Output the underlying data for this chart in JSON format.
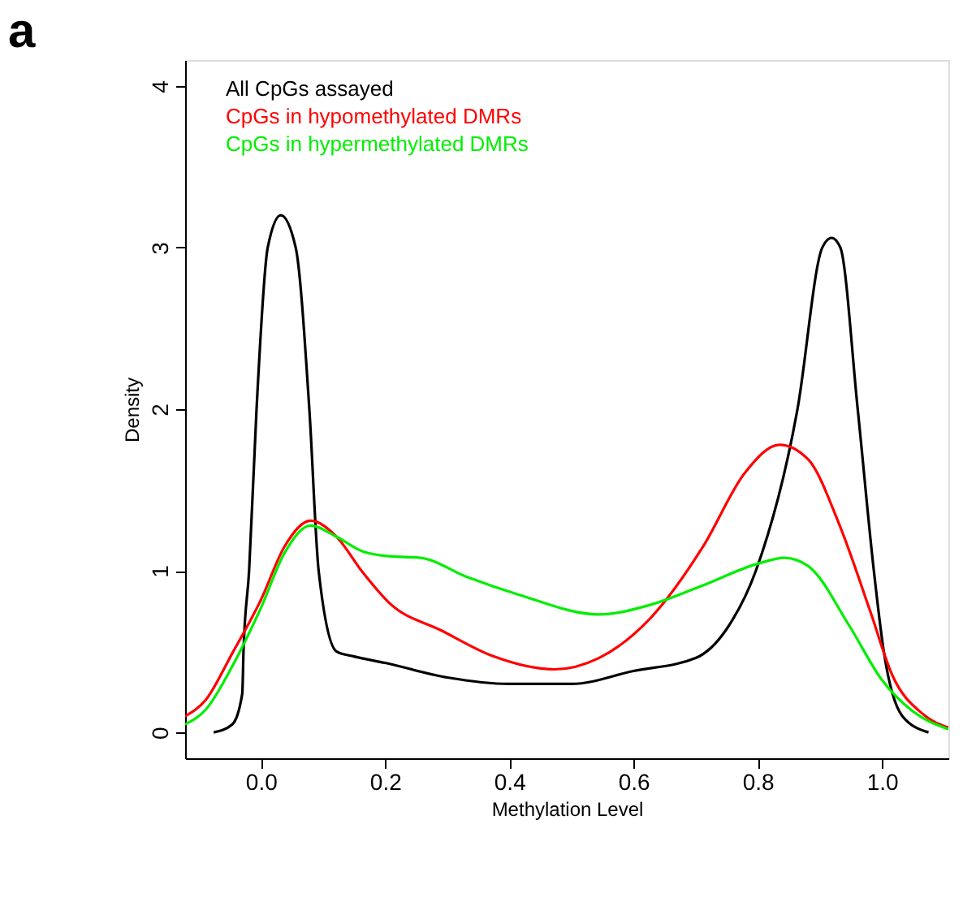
{
  "chart_data": {
    "type": "line",
    "title": "a",
    "xlabel": "Methylation Level",
    "ylabel": "Density",
    "xlim": [
      -0.122,
      1.107
    ],
    "ylim": [
      -0.16,
      4.16
    ],
    "xticks": [
      {
        "value": 0,
        "label": "0.0"
      },
      0.2,
      0.4,
      0.6,
      0.8,
      {
        "value": 1,
        "label": "1.0"
      }
    ],
    "yticks": [
      0,
      1,
      2,
      3,
      4
    ],
    "grid": false,
    "legend": "top left",
    "line_style": "solid",
    "marker": "none",
    "series": [
      {
        "name": "All CpGs assayed",
        "color": "#000000",
        "x": [
          -0.076,
          -0.046,
          -0.03,
          -0.028,
          -0.019,
          -0.007,
          0.011,
          0.032,
          0.056,
          0.078,
          0.093,
          0.122,
          0.15,
          0.2,
          0.3,
          0.4,
          0.5,
          0.6,
          0.7,
          0.75,
          0.797,
          0.864,
          0.904,
          0.919,
          0.933,
          0.961,
          0.987,
          1.003,
          1.033,
          1.075
        ],
        "values": [
          0,
          0.05,
          0.24,
          0.5,
          1,
          2,
          3,
          3.2,
          3,
          2,
          1,
          0.5,
          0.47,
          0.43,
          0.34,
          0.3,
          0.3,
          0.38,
          0.46,
          0.64,
          1,
          2,
          3,
          3.06,
          3,
          2,
          1,
          0.5,
          0.1,
          0
        ]
      },
      {
        "name": "CpGs in hypomethylated DMRs",
        "color": "#ff0000",
        "x": [
          -0.122,
          -0.089,
          -0.046,
          0.0,
          0.038,
          0.08,
          0.122,
          0.164,
          0.207,
          0.291,
          0.375,
          0.472,
          0.544,
          0.628,
          0.712,
          0.78,
          0.835,
          0.881,
          0.932,
          0.982,
          1.016,
          1.067,
          1.107
        ],
        "values": [
          0.1,
          0.2,
          0.49,
          0.82,
          1.15,
          1.31,
          1.21,
          0.99,
          0.8,
          0.63,
          0.47,
          0.39,
          0.46,
          0.71,
          1.15,
          1.61,
          1.78,
          1.69,
          1.28,
          0.74,
          0.36,
          0.11,
          0.03
        ]
      },
      {
        "name": "CpGs in hypermethylated DMRs",
        "color": "#00ee00",
        "x": [
          -0.122,
          -0.089,
          -0.046,
          0.0,
          0.038,
          0.08,
          0.122,
          0.164,
          0.207,
          0.257,
          0.333,
          0.417,
          0.544,
          0.628,
          0.712,
          0.797,
          0.843,
          0.881,
          0.949,
          0.999,
          1.05,
          1.107
        ],
        "values": [
          0.05,
          0.14,
          0.41,
          0.77,
          1.11,
          1.28,
          1.21,
          1.12,
          1.09,
          1.08,
          0.96,
          0.85,
          0.73,
          0.79,
          0.91,
          1.04,
          1.08,
          1.03,
          0.65,
          0.33,
          0.13,
          0.02
        ]
      }
    ]
  }
}
